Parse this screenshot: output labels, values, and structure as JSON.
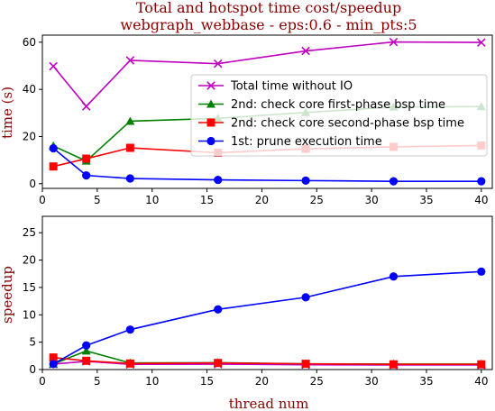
{
  "chart_data": [
    {
      "type": "line",
      "title": "Total and hotspot time cost/speedup",
      "subtitle": "webgraph_webbase - eps:0.6 - min_pts:5",
      "xlabel": "",
      "ylabel": "time (s)",
      "xlim": [
        0,
        41
      ],
      "ylim": [
        -2,
        63
      ],
      "xticks": [
        0,
        5,
        10,
        15,
        20,
        25,
        30,
        35,
        40
      ],
      "yticks": [
        0,
        20,
        40,
        60
      ],
      "x": [
        1,
        4,
        8,
        16,
        24,
        32,
        40
      ],
      "legend": "right",
      "series": [
        {
          "name": "Total time without IO",
          "color": "#bf00bf",
          "marker": "x",
          "values": [
            49.8,
            32.8,
            52.3,
            50.9,
            56.3,
            60.1,
            59.9
          ]
        },
        {
          "name": "2nd: check core first-phase bsp time",
          "color": "#008000",
          "marker": "triangle",
          "values": [
            16.0,
            9.6,
            26.5,
            27.7,
            30.2,
            32.5,
            32.7
          ]
        },
        {
          "name": "2nd: check core second-phase bsp time",
          "color": "#ff0000",
          "marker": "square",
          "values": [
            7.3,
            10.6,
            15.2,
            13.1,
            14.8,
            15.6,
            16.2
          ]
        },
        {
          "name": "1st: prune execution time",
          "color": "#0000ff",
          "marker": "circle",
          "values": [
            15.0,
            3.5,
            2.2,
            1.6,
            1.3,
            1.0,
            1.0
          ]
        }
      ]
    },
    {
      "type": "line",
      "xlabel": "thread num",
      "ylabel": "speedup",
      "xlim": [
        0,
        41
      ],
      "ylim": [
        0,
        28
      ],
      "xticks": [
        0,
        5,
        10,
        15,
        20,
        25,
        30,
        35,
        40
      ],
      "yticks": [
        0,
        5,
        10,
        15,
        20,
        25
      ],
      "x": [
        1,
        4,
        8,
        16,
        24,
        32,
        40
      ],
      "series": [
        {
          "color": "#bf00bf",
          "marker": "x",
          "values": [
            1.0,
            1.5,
            0.95,
            0.98,
            0.88,
            0.83,
            0.83
          ]
        },
        {
          "color": "#008000",
          "marker": "triangle",
          "values": [
            1.0,
            3.4,
            1.2,
            1.25,
            1.05,
            1.0,
            1.0
          ]
        },
        {
          "color": "#ff0000",
          "marker": "square",
          "values": [
            2.2,
            1.6,
            1.1,
            1.2,
            1.05,
            0.95,
            0.95
          ]
        },
        {
          "color": "#0000ff",
          "marker": "circle",
          "values": [
            1.0,
            4.4,
            7.3,
            11.0,
            13.2,
            17.0,
            17.9
          ]
        }
      ]
    }
  ]
}
